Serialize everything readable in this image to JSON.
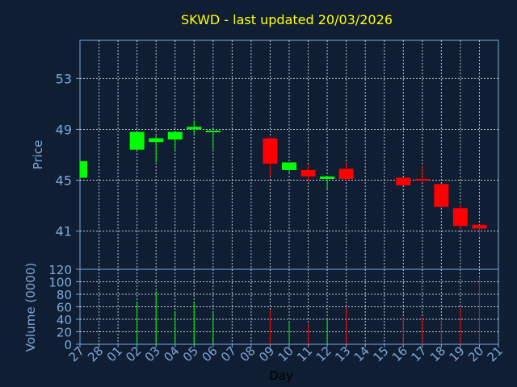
{
  "chart_data": {
    "type": "candlestick",
    "title": "SKWD - last updated 20/03/2026",
    "xlabel": "Day",
    "ylabel": "Price",
    "volume_label": "Volume (0000)",
    "x_ticks": [
      "27",
      "28",
      "01",
      "02",
      "03",
      "04",
      "05",
      "06",
      "07",
      "08",
      "09",
      "10",
      "11",
      "12",
      "13",
      "14",
      "15",
      "16",
      "17",
      "18",
      "19",
      "20",
      "21"
    ],
    "price_ticks": [
      "41",
      "45",
      "49",
      "53"
    ],
    "price_ylim": [
      38.0,
      56.0
    ],
    "volume_ticks": [
      "0",
      "20",
      "40",
      "60",
      "80",
      "100",
      "120"
    ],
    "volume_ylim": [
      0,
      120
    ],
    "grid": true,
    "colors": {
      "up": "#00ff00",
      "down": "#ff0000",
      "background": "#0f1e33",
      "title": "#ffff00",
      "axis": "#7fa8d8",
      "grid": "#ffffff"
    },
    "candles": [
      {
        "day": "27",
        "open": 45.2,
        "high": 46.5,
        "low": 45.2,
        "close": 46.5,
        "volume": 0
      },
      {
        "day": "02",
        "open": 47.4,
        "high": 48.8,
        "low": 47.4,
        "close": 48.8,
        "volume": 68
      },
      {
        "day": "03",
        "open": 48.0,
        "high": 48.5,
        "low": 46.4,
        "close": 48.3,
        "volume": 85
      },
      {
        "day": "04",
        "open": 48.2,
        "high": 48.8,
        "low": 47.3,
        "close": 48.8,
        "volume": 53
      },
      {
        "day": "05",
        "open": 49.0,
        "high": 49.7,
        "low": 48.6,
        "close": 49.2,
        "volume": 68
      },
      {
        "day": "06",
        "open": 48.8,
        "high": 48.9,
        "low": 47.4,
        "close": 48.9,
        "volume": 50
      },
      {
        "day": "09",
        "open": 48.3,
        "high": 48.4,
        "low": 45.3,
        "close": 46.3,
        "volume": 55
      },
      {
        "day": "10",
        "open": 45.8,
        "high": 46.4,
        "low": 45.6,
        "close": 46.4,
        "volume": 36
      },
      {
        "day": "11",
        "open": 45.8,
        "high": 46.2,
        "low": 44.9,
        "close": 45.3,
        "volume": 33
      },
      {
        "day": "12",
        "open": 45.1,
        "high": 45.3,
        "low": 44.3,
        "close": 45.3,
        "volume": 42
      },
      {
        "day": "13",
        "open": 45.9,
        "high": 46.4,
        "low": 44.9,
        "close": 45.1,
        "volume": 60
      },
      {
        "day": "16",
        "open": 45.2,
        "high": 45.2,
        "low": 44.6,
        "close": 44.6,
        "volume": 42
      },
      {
        "day": "17",
        "open": 45.1,
        "high": 46.1,
        "low": 44.8,
        "close": 45.0,
        "volume": 43
      },
      {
        "day": "18",
        "open": 44.7,
        "high": 44.7,
        "low": 42.8,
        "close": 42.9,
        "volume": 38
      },
      {
        "day": "19",
        "open": 42.8,
        "high": 43.1,
        "low": 41.2,
        "close": 41.4,
        "volume": 58
      },
      {
        "day": "20",
        "open": 41.5,
        "high": 41.5,
        "low": 40.6,
        "close": 41.2,
        "volume": 108
      }
    ]
  }
}
